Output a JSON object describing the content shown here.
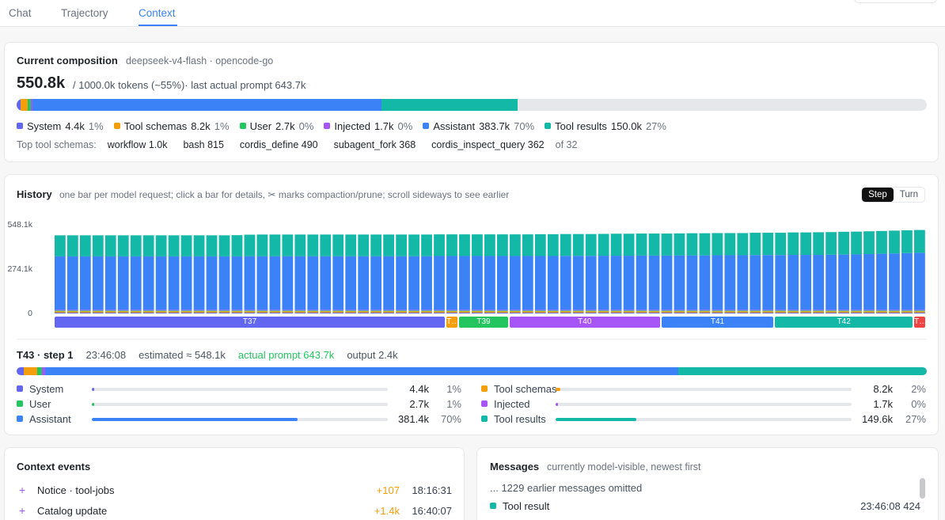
{
  "tabs": [
    {
      "label": "Chat"
    },
    {
      "label": "Trajectory"
    },
    {
      "label": "Context"
    }
  ],
  "composition": {
    "title": "Current composition",
    "model": "deepseek-v4-flash · opencode-go",
    "total": "550.8k",
    "summary": "/ 1000.0k tokens (~55%)· last actual prompt 643.7k",
    "fill_fraction": 0.55,
    "legend": [
      {
        "name": "System",
        "value": "4.4k",
        "pct": "1%",
        "color": "#6366f1",
        "fraction": 0.0044
      },
      {
        "name": "Tool schemas",
        "value": "8.2k",
        "pct": "1%",
        "color": "#f59e0b",
        "fraction": 0.0082
      },
      {
        "name": "User",
        "value": "2.7k",
        "pct": "0%",
        "color": "#22c55e",
        "fraction": 0.0027
      },
      {
        "name": "Injected",
        "value": "1.7k",
        "pct": "0%",
        "color": "#a855f7",
        "fraction": 0.0017
      },
      {
        "name": "Assistant",
        "value": "383.7k",
        "pct": "70%",
        "color": "#3b82f6",
        "fraction": 0.3837
      },
      {
        "name": "Tool results",
        "value": "150.0k",
        "pct": "27%",
        "color": "#14b8a6",
        "fraction": 0.15
      }
    ],
    "top_schemas_label": "Top tool schemas:",
    "top_schemas": [
      "workflow 1.0k",
      "bash 815",
      "cordis_define 490",
      "subagent_fork 368",
      "cordis_inspect_query 362"
    ],
    "schemas_more": "of 32"
  },
  "history": {
    "title": "History",
    "subtitle": "one bar per model request; click a bar for details, ✂ marks compaction/prune; scroll sideways to see earlier",
    "toggle": {
      "on": "Step",
      "off": "Turn"
    }
  },
  "chart_data": {
    "type": "bar",
    "stacked": true,
    "ylim": [
      0,
      548.1
    ],
    "yticks": [
      "548.1k",
      "274.1k",
      "0"
    ],
    "ytick_values": [
      548.1,
      274.1,
      0
    ],
    "series_order": [
      "System",
      "Tool schemas",
      "User",
      "Injected",
      "Assistant",
      "Tool results"
    ],
    "series_colors": [
      "#6366f1",
      "#f59e0b",
      "#22c55e",
      "#a855f7",
      "#3b82f6",
      "#14b8a6"
    ],
    "n_bars": 69,
    "base_values": [
      4.4,
      8.2,
      2.7,
      1.7
    ],
    "assistant_values": [
      330,
      330,
      330,
      330,
      330,
      330,
      330,
      330,
      330,
      330,
      330,
      330,
      330,
      330,
      330,
      331,
      331,
      331,
      331,
      331,
      331,
      331,
      331,
      331,
      331,
      331,
      331,
      331,
      331,
      331,
      332,
      332,
      332,
      332,
      332,
      332,
      332,
      332,
      332,
      332,
      333,
      333,
      333,
      334,
      334,
      334,
      335,
      335,
      335,
      336,
      336,
      336,
      337,
      337,
      337,
      338,
      338,
      338,
      339,
      339,
      339,
      340,
      341,
      342,
      344,
      346,
      348,
      350,
      352
    ],
    "toolresult_values": [
      130,
      130,
      130,
      130,
      130,
      130,
      130,
      130,
      130,
      130,
      130,
      130,
      130,
      130,
      131,
      133,
      134,
      134,
      134,
      134,
      134,
      134,
      134,
      134,
      134,
      134,
      134,
      134,
      134,
      134,
      134,
      134,
      134,
      134,
      134,
      134,
      134,
      134,
      135,
      135,
      135,
      135,
      135,
      135,
      136,
      136,
      136,
      136,
      136,
      136,
      137,
      137,
      137,
      137,
      137,
      138,
      138,
      138,
      139,
      139,
      140,
      140,
      141,
      141,
      141,
      141,
      141,
      141,
      141
    ],
    "turns": [
      {
        "label": "T37",
        "start": 0,
        "end": 31,
        "color": "#6366f1"
      },
      {
        "label": "T…",
        "start": 31,
        "end": 32,
        "color": "#f59e0b"
      },
      {
        "label": "T39",
        "start": 32,
        "end": 36,
        "color": "#22c55e"
      },
      {
        "label": "T40",
        "start": 36,
        "end": 48,
        "color": "#a855f7"
      },
      {
        "label": "T41",
        "start": 48,
        "end": 57,
        "color": "#3b82f6"
      },
      {
        "label": "T42",
        "start": 57,
        "end": 68,
        "color": "#14b8a6"
      },
      {
        "label": "T…",
        "start": 68,
        "end": 69,
        "color": "#ef4444"
      }
    ]
  },
  "step": {
    "id": "T43 · step 1",
    "time": "23:46:08",
    "estimated": "estimated ≈ 548.1k",
    "actual": "actual prompt 643.7k",
    "output": "output 2.4k",
    "bar": [
      {
        "color": "#6366f1",
        "fraction": 0.008
      },
      {
        "color": "#f59e0b",
        "fraction": 0.015
      },
      {
        "color": "#22c55e",
        "fraction": 0.005
      },
      {
        "color": "#a855f7",
        "fraction": 0.003
      },
      {
        "color": "#3b82f6",
        "fraction": 0.696
      },
      {
        "color": "#14b8a6",
        "fraction": 0.273
      }
    ],
    "breakdown_left": [
      {
        "name": "System",
        "value": "4.4k",
        "pct": "1%",
        "color": "#6366f1",
        "fraction": 0.008
      },
      {
        "name": "User",
        "value": "2.7k",
        "pct": "1%",
        "color": "#22c55e",
        "fraction": 0.005
      },
      {
        "name": "Assistant",
        "value": "381.4k",
        "pct": "70%",
        "color": "#3b82f6",
        "fraction": 0.696
      }
    ],
    "breakdown_right": [
      {
        "name": "Tool schemas",
        "value": "8.2k",
        "pct": "2%",
        "color": "#f59e0b",
        "fraction": 0.015
      },
      {
        "name": "Injected",
        "value": "1.7k",
        "pct": "0%",
        "color": "#a855f7",
        "fraction": 0.003
      },
      {
        "name": "Tool results",
        "value": "149.6k",
        "pct": "27%",
        "color": "#14b8a6",
        "fraction": 0.273
      }
    ]
  },
  "events": {
    "title": "Context events",
    "items": [
      {
        "icon": "+",
        "name": "Notice · tool-jobs",
        "delta": "+107",
        "time": "18:16:31"
      },
      {
        "icon": "+",
        "name": "Catalog update",
        "delta": "+1.4k",
        "time": "16:40:07"
      }
    ]
  },
  "messages": {
    "title": "Messages",
    "subtitle": "currently model-visible, newest first",
    "omitted": "... 1229 earlier messages omitted",
    "items": [
      {
        "name": "Tool result",
        "time": "23:46:08  424",
        "color": "#14b8a6"
      }
    ]
  }
}
